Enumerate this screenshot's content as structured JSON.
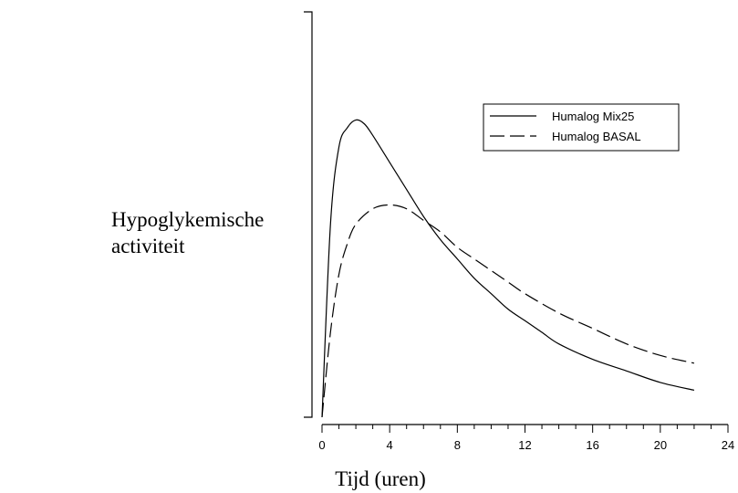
{
  "chart_data": {
    "type": "line",
    "title": "",
    "ylabel": [
      "Hypoglykemische",
      "activiteit"
    ],
    "xlabel": "Tijd (uren)",
    "xlim": [
      0,
      24
    ],
    "x_major_ticks": [
      0,
      4,
      8,
      12,
      16,
      20,
      24
    ],
    "x_tick_labels": [
      "0",
      "4",
      "8",
      "12",
      "16",
      "20",
      "24"
    ],
    "x_minor_step": 1,
    "ylim": [
      0,
      1.05
    ],
    "y_tick_labels": [],
    "grid": false,
    "legend_position": "upper-right",
    "series": [
      {
        "name": "Humalog Mix25",
        "style": "solid",
        "color": "#000000",
        "points": [
          [
            0,
            0.0
          ],
          [
            0.5,
            0.5
          ],
          [
            1,
            0.7
          ],
          [
            1.5,
            0.75
          ],
          [
            2,
            0.77
          ],
          [
            2.5,
            0.76
          ],
          [
            3,
            0.73
          ],
          [
            4,
            0.66
          ],
          [
            5,
            0.59
          ],
          [
            6,
            0.52
          ],
          [
            7,
            0.46
          ],
          [
            8,
            0.41
          ],
          [
            9,
            0.36
          ],
          [
            10,
            0.32
          ],
          [
            11,
            0.28
          ],
          [
            12,
            0.25
          ],
          [
            13,
            0.22
          ],
          [
            14,
            0.19
          ],
          [
            16,
            0.15
          ],
          [
            18,
            0.12
          ],
          [
            20,
            0.09
          ],
          [
            22,
            0.07
          ]
        ]
      },
      {
        "name": "Humalog BASAL",
        "style": "dashed",
        "color": "#000000",
        "points": [
          [
            0,
            0.0
          ],
          [
            0.5,
            0.22
          ],
          [
            1,
            0.37
          ],
          [
            1.5,
            0.45
          ],
          [
            2,
            0.5
          ],
          [
            3,
            0.54
          ],
          [
            4,
            0.55
          ],
          [
            5,
            0.54
          ],
          [
            6,
            0.51
          ],
          [
            7,
            0.48
          ],
          [
            8,
            0.44
          ],
          [
            9,
            0.41
          ],
          [
            10,
            0.38
          ],
          [
            11,
            0.35
          ],
          [
            12,
            0.32
          ],
          [
            14,
            0.27
          ],
          [
            16,
            0.23
          ],
          [
            18,
            0.19
          ],
          [
            20,
            0.16
          ],
          [
            22,
            0.14
          ]
        ]
      }
    ]
  }
}
